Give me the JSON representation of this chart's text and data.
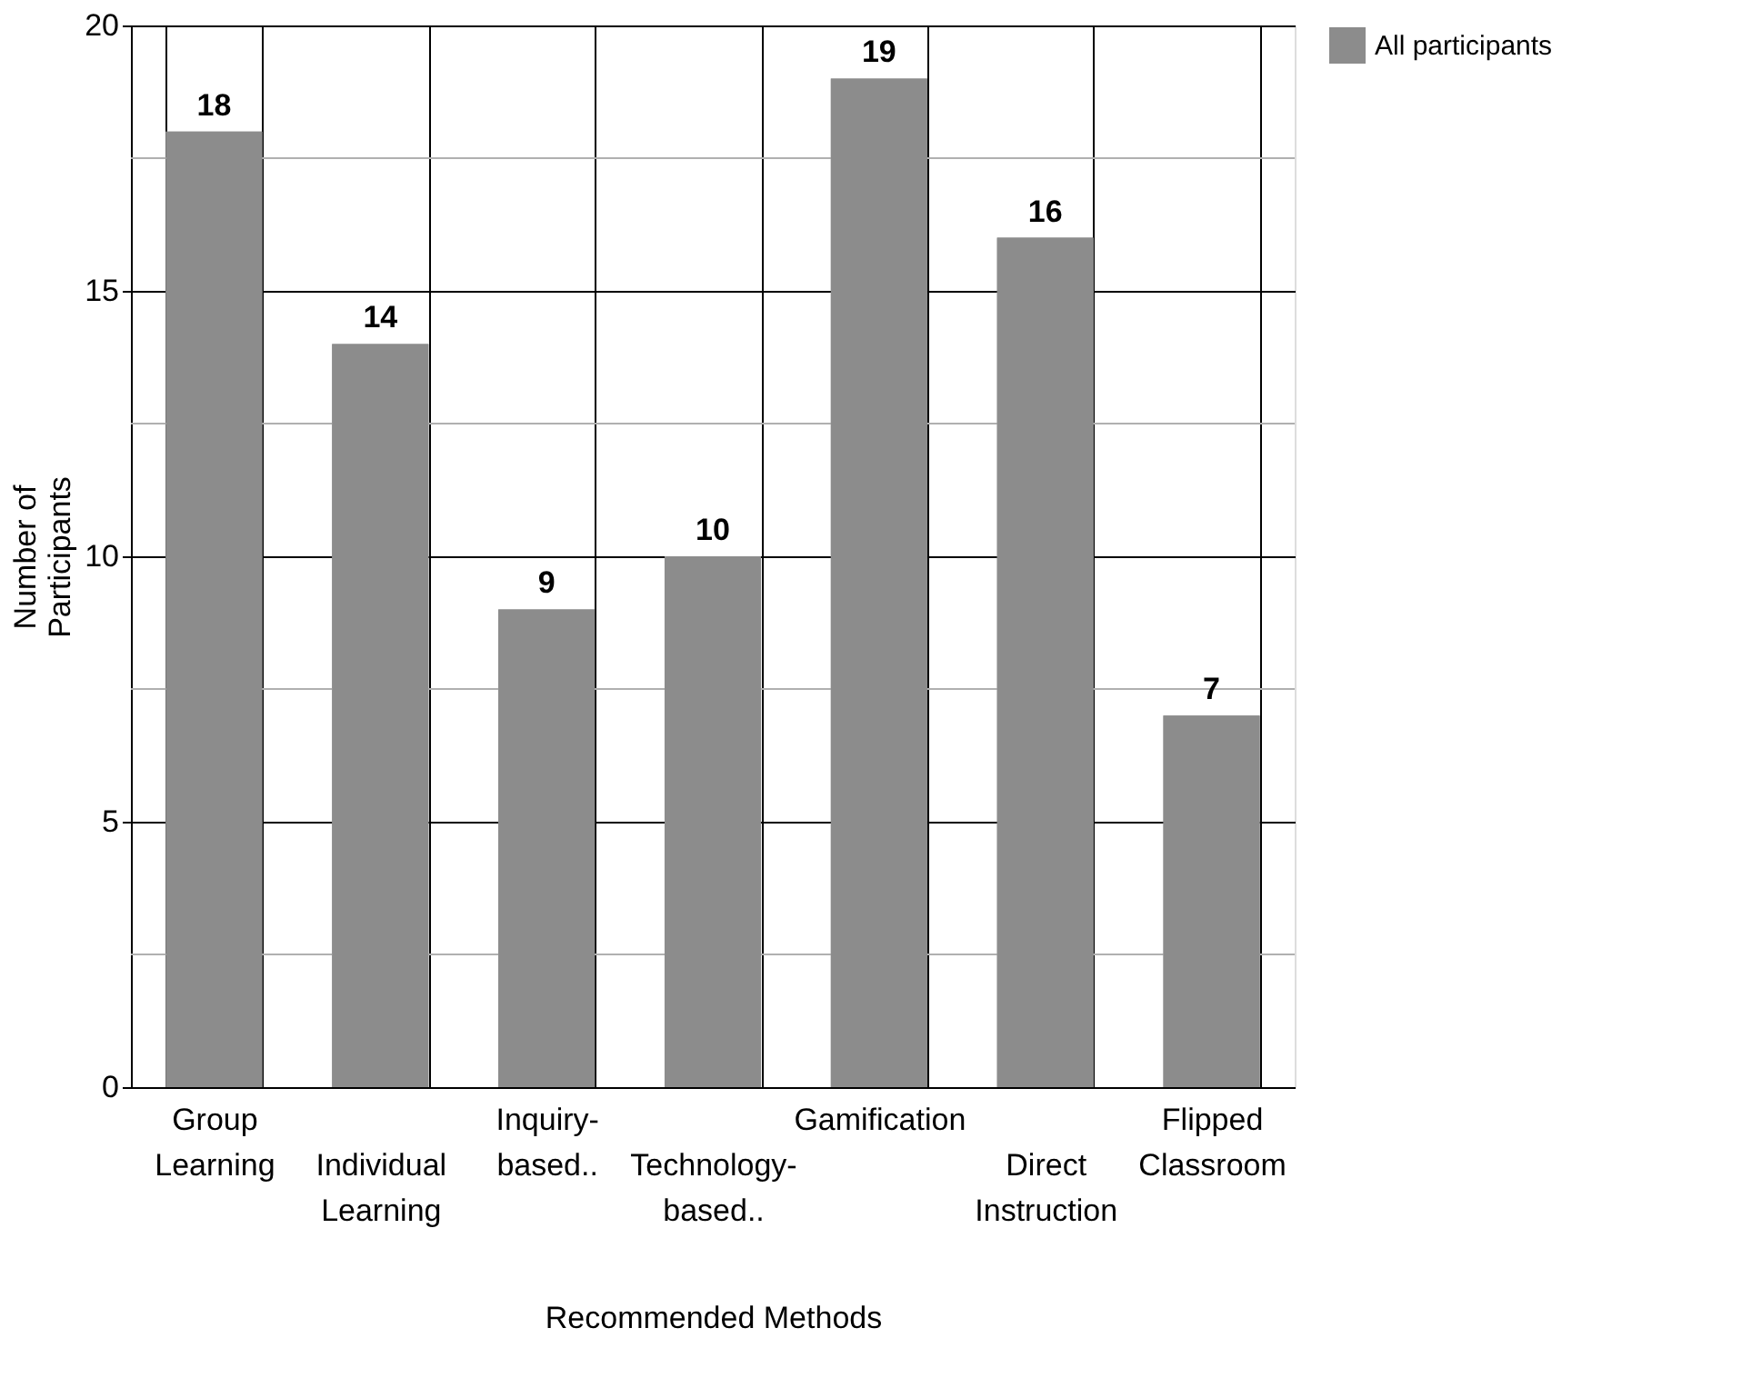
{
  "chart_data": {
    "type": "bar",
    "categories": [
      "Group Learning",
      "Individual Learning",
      "Inquiry-based..",
      "Technology-based..",
      "Gamification",
      "Direct Instruction",
      "Flipped Classroom"
    ],
    "series": [
      {
        "name": "All participants",
        "color": "#8c8c8c",
        "values": [
          18,
          14,
          9,
          10,
          19,
          16,
          7
        ]
      }
    ],
    "xlabel": "Recommended Methods",
    "ylabel": "Number of Participants",
    "ylim": [
      0,
      20
    ],
    "yticks": [
      0,
      {
        "value": 2.5,
        "label": null
      },
      5,
      {
        "value": 7.5,
        "label": null
      },
      10,
      {
        "value": 12.5,
        "label": null
      },
      15,
      {
        "value": 17.5,
        "label": null
      },
      20
    ],
    "grid": true,
    "legend": "right",
    "data_labels": true
  }
}
